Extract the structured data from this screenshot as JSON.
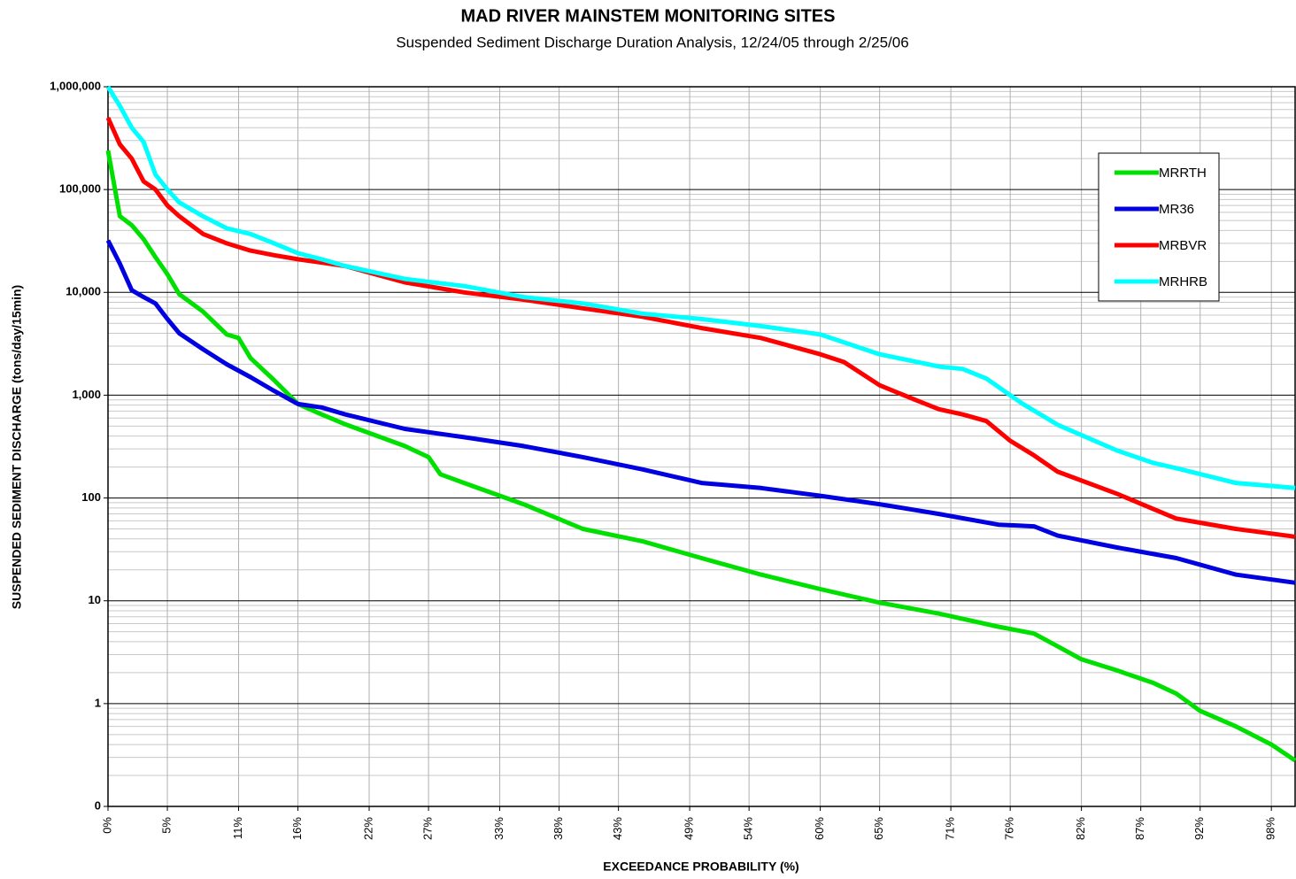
{
  "chart_data": {
    "type": "line",
    "title": "MAD RIVER MAINSTEM MONITORING SITES",
    "subtitle": "Suspended Sediment Discharge Duration Analysis, 12/24/05 through 2/25/06",
    "x_label": "EXCEEDANCE PROBABILITY (%)",
    "y_label": "SUSPENDED SEDIMENT DISCHARGE (tons/day/15min)",
    "y_scale": "log",
    "grid": true,
    "minor_grid": true,
    "legend_position": "upper right",
    "xlim": [
      0,
      100
    ],
    "xticks": [
      {
        "value": 0,
        "label": "0%"
      },
      {
        "value": 5,
        "label": "5%"
      },
      {
        "value": 11,
        "label": "11%"
      },
      {
        "value": 16,
        "label": "16%"
      },
      {
        "value": 22,
        "label": "22%"
      },
      {
        "value": 27,
        "label": "27%"
      },
      {
        "value": 33,
        "label": "33%"
      },
      {
        "value": 38,
        "label": "38%"
      },
      {
        "value": 43,
        "label": "43%"
      },
      {
        "value": 49,
        "label": "49%"
      },
      {
        "value": 54,
        "label": "54%"
      },
      {
        "value": 60,
        "label": "60%"
      },
      {
        "value": 65,
        "label": "65%"
      },
      {
        "value": 71,
        "label": "71%"
      },
      {
        "value": 76,
        "label": "76%"
      },
      {
        "value": 82,
        "label": "82%"
      },
      {
        "value": 87,
        "label": "87%"
      },
      {
        "value": 92,
        "label": "92%"
      },
      {
        "value": 98,
        "label": "98%"
      }
    ],
    "ylim": [
      0.1,
      1000000
    ],
    "yticks": [
      {
        "value": 0.1,
        "label": "0"
      },
      1,
      10,
      100,
      {
        "value": 1000,
        "label": "1,000"
      },
      {
        "value": 10000,
        "label": "10,000"
      },
      {
        "value": 100000,
        "label": "100,000"
      },
      {
        "value": 1000000,
        "label": "1,000,000"
      }
    ],
    "series": [
      {
        "name": "MRRTH",
        "color": "#00e000",
        "x": [
          0,
          1,
          2,
          3,
          4,
          5,
          6,
          8,
          10,
          11,
          12,
          14,
          16,
          18,
          20,
          25,
          27,
          28,
          30,
          35,
          40,
          45,
          50,
          55,
          60,
          65,
          70,
          75,
          78,
          80,
          82,
          85,
          88,
          90,
          92,
          95,
          98,
          100
        ],
        "values": [
          240000,
          55000,
          45000,
          33000,
          22000,
          15000,
          9600,
          6500,
          3900,
          3600,
          2300,
          1400,
          820,
          650,
          520,
          320,
          250,
          170,
          140,
          87,
          50,
          38,
          26,
          18,
          13,
          9.6,
          7.5,
          5.6,
          4.8,
          3.6,
          2.7,
          2.1,
          1.6,
          1.25,
          0.85,
          0.6,
          0.4,
          0.28
        ]
      },
      {
        "name": "MR36",
        "color": "#0000e0",
        "x": [
          0,
          1,
          2,
          3,
          4,
          5,
          6,
          8,
          10,
          12,
          14,
          16,
          18,
          20,
          25,
          30,
          35,
          40,
          45,
          50,
          55,
          60,
          65,
          70,
          75,
          78,
          80,
          85,
          90,
          95,
          100
        ],
        "values": [
          32000,
          19000,
          10500,
          9000,
          7800,
          5500,
          4000,
          2800,
          2000,
          1500,
          1100,
          820,
          760,
          650,
          470,
          390,
          320,
          250,
          190,
          140,
          125,
          105,
          87,
          70,
          55,
          53,
          43,
          33,
          26,
          18,
          15
        ]
      },
      {
        "name": "MRBVR",
        "color": "#ff0000",
        "x": [
          0,
          1,
          2,
          3,
          4,
          5,
          6,
          8,
          10,
          12,
          14,
          16,
          18,
          20,
          25,
          30,
          35,
          40,
          45,
          50,
          55,
          60,
          62,
          65,
          68,
          70,
          72,
          74,
          76,
          78,
          80,
          85,
          90,
          95,
          100
        ],
        "values": [
          500000,
          275000,
          200000,
          120000,
          100000,
          70000,
          55000,
          37000,
          30000,
          25500,
          23000,
          21000,
          19500,
          18000,
          12500,
          10000,
          8500,
          7000,
          5800,
          4500,
          3600,
          2500,
          2100,
          1250,
          900,
          730,
          650,
          560,
          360,
          260,
          180,
          110,
          63,
          50,
          42
        ]
      },
      {
        "name": "MRHRB",
        "color": "#00ffff",
        "x": [
          0,
          1,
          2,
          3,
          4,
          5,
          6,
          8,
          10,
          12,
          14,
          16,
          18,
          20,
          25,
          30,
          35,
          40,
          45,
          50,
          55,
          60,
          65,
          70,
          72,
          74,
          77,
          80,
          85,
          88,
          90,
          95,
          100
        ],
        "values": [
          1000000,
          650000,
          400000,
          290000,
          140000,
          100000,
          75000,
          55000,
          42000,
          37000,
          30000,
          24000,
          21000,
          18000,
          13500,
          11500,
          9000,
          7800,
          6200,
          5500,
          4700,
          3900,
          2500,
          1900,
          1800,
          1450,
          830,
          515,
          290,
          220,
          195,
          140,
          125
        ]
      }
    ]
  }
}
